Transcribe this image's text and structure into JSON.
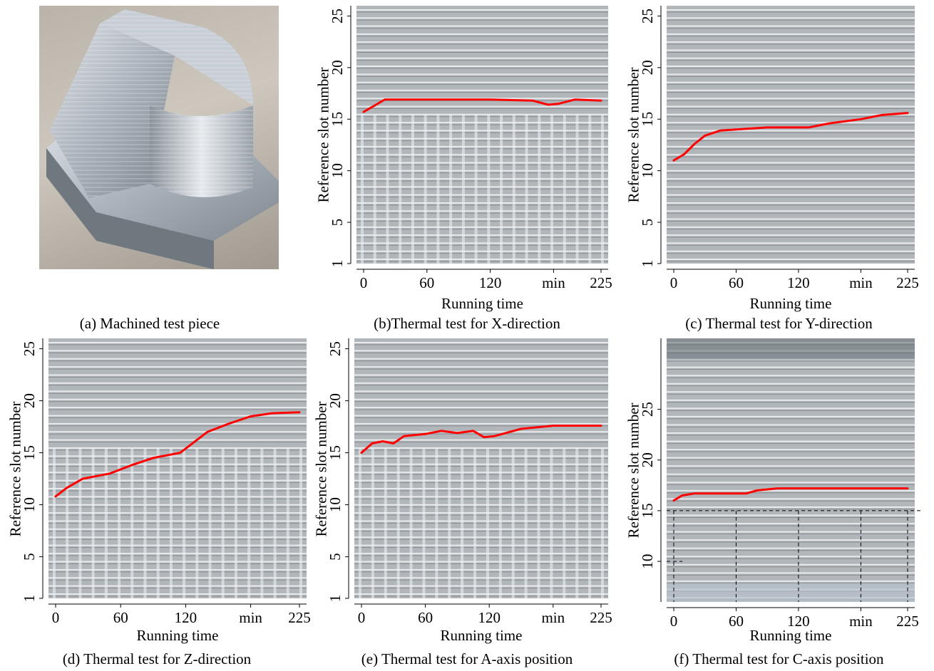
{
  "chart_data": [
    {
      "panel": "a",
      "type": "image",
      "caption": "(a) Machined test piece"
    },
    {
      "panel": "b",
      "type": "line",
      "caption": "(b)Thermal test for X-direction",
      "xlabel": "Running time",
      "ylabel": "Reference slot number",
      "x_ticks": [
        "0",
        "60",
        "120",
        "min",
        "225"
      ],
      "y_ticks": [
        "1",
        "5",
        "10",
        "15",
        "20",
        "25"
      ],
      "xlim": [
        0,
        225
      ],
      "ylim": [
        1,
        26
      ],
      "series": [
        {
          "color": "#ff0000",
          "x": [
            0,
            10,
            20,
            40,
            80,
            120,
            160,
            175,
            185,
            200,
            225
          ],
          "y": [
            15.7,
            16.3,
            16.9,
            16.9,
            16.9,
            16.9,
            16.8,
            16.4,
            16.5,
            16.9,
            16.8
          ]
        }
      ]
    },
    {
      "panel": "c",
      "type": "line",
      "caption": "(c) Thermal test for Y-direction",
      "xlabel": "Running time",
      "ylabel": "Reference slot number",
      "x_ticks": [
        "0",
        "60",
        "120",
        "min",
        "225"
      ],
      "y_ticks": [
        "1",
        "5",
        "10",
        "15",
        "20",
        "25"
      ],
      "xlim": [
        0,
        225
      ],
      "ylim": [
        1,
        26
      ],
      "series": [
        {
          "color": "#ff0000",
          "x": [
            0,
            10,
            20,
            30,
            45,
            60,
            90,
            130,
            150,
            180,
            200,
            225
          ],
          "y": [
            11.0,
            11.6,
            12.6,
            13.4,
            13.9,
            14.0,
            14.2,
            14.2,
            14.6,
            15.0,
            15.4,
            15.6
          ]
        }
      ]
    },
    {
      "panel": "d",
      "type": "line",
      "caption": "(d) Thermal test for Z-direction",
      "xlabel": "Running time",
      "ylabel": "Reference slot number",
      "x_ticks": [
        "0",
        "60",
        "120",
        "min",
        "225"
      ],
      "y_ticks": [
        "1",
        "5",
        "10",
        "15",
        "20",
        "25"
      ],
      "xlim": [
        0,
        225
      ],
      "ylim": [
        1,
        26
      ],
      "series": [
        {
          "color": "#ff0000",
          "x": [
            0,
            10,
            25,
            50,
            70,
            90,
            115,
            125,
            140,
            160,
            180,
            200,
            225
          ],
          "y": [
            10.8,
            11.6,
            12.5,
            13.0,
            13.8,
            14.5,
            15.0,
            15.8,
            17.0,
            17.8,
            18.5,
            18.8,
            18.9
          ]
        }
      ]
    },
    {
      "panel": "e",
      "type": "line",
      "caption": "(e) Thermal test for A-axis position",
      "xlabel": "Running time",
      "ylabel": "Reference slot number",
      "x_ticks": [
        "0",
        "60",
        "120",
        "min",
        "225"
      ],
      "y_ticks": [
        "1",
        "5",
        "10",
        "15",
        "20",
        "25"
      ],
      "xlim": [
        0,
        225
      ],
      "ylim": [
        1,
        26
      ],
      "series": [
        {
          "color": "#ff0000",
          "x": [
            0,
            10,
            20,
            30,
            40,
            60,
            75,
            90,
            105,
            115,
            125,
            150,
            180,
            225
          ],
          "y": [
            15.0,
            15.9,
            16.1,
            15.9,
            16.6,
            16.8,
            17.1,
            16.9,
            17.1,
            16.5,
            16.6,
            17.3,
            17.6,
            17.6
          ]
        }
      ]
    },
    {
      "panel": "f",
      "type": "line",
      "caption": "(f) Thermal test for C-axis position",
      "xlabel": "Running time",
      "ylabel": "Reference slot number",
      "x_ticks": [
        "0",
        "60",
        "120",
        "min",
        "225"
      ],
      "y_ticks": [
        "10",
        "15",
        "20",
        "25"
      ],
      "xlim": [
        0,
        225
      ],
      "ylim": [
        6,
        32
      ],
      "series": [
        {
          "color": "#ff0000",
          "x": [
            0,
            8,
            20,
            50,
            70,
            80,
            100,
            150,
            200,
            225
          ],
          "y": [
            16.0,
            16.5,
            16.7,
            16.7,
            16.7,
            17.0,
            17.2,
            17.2,
            17.2,
            17.2
          ]
        }
      ]
    }
  ]
}
